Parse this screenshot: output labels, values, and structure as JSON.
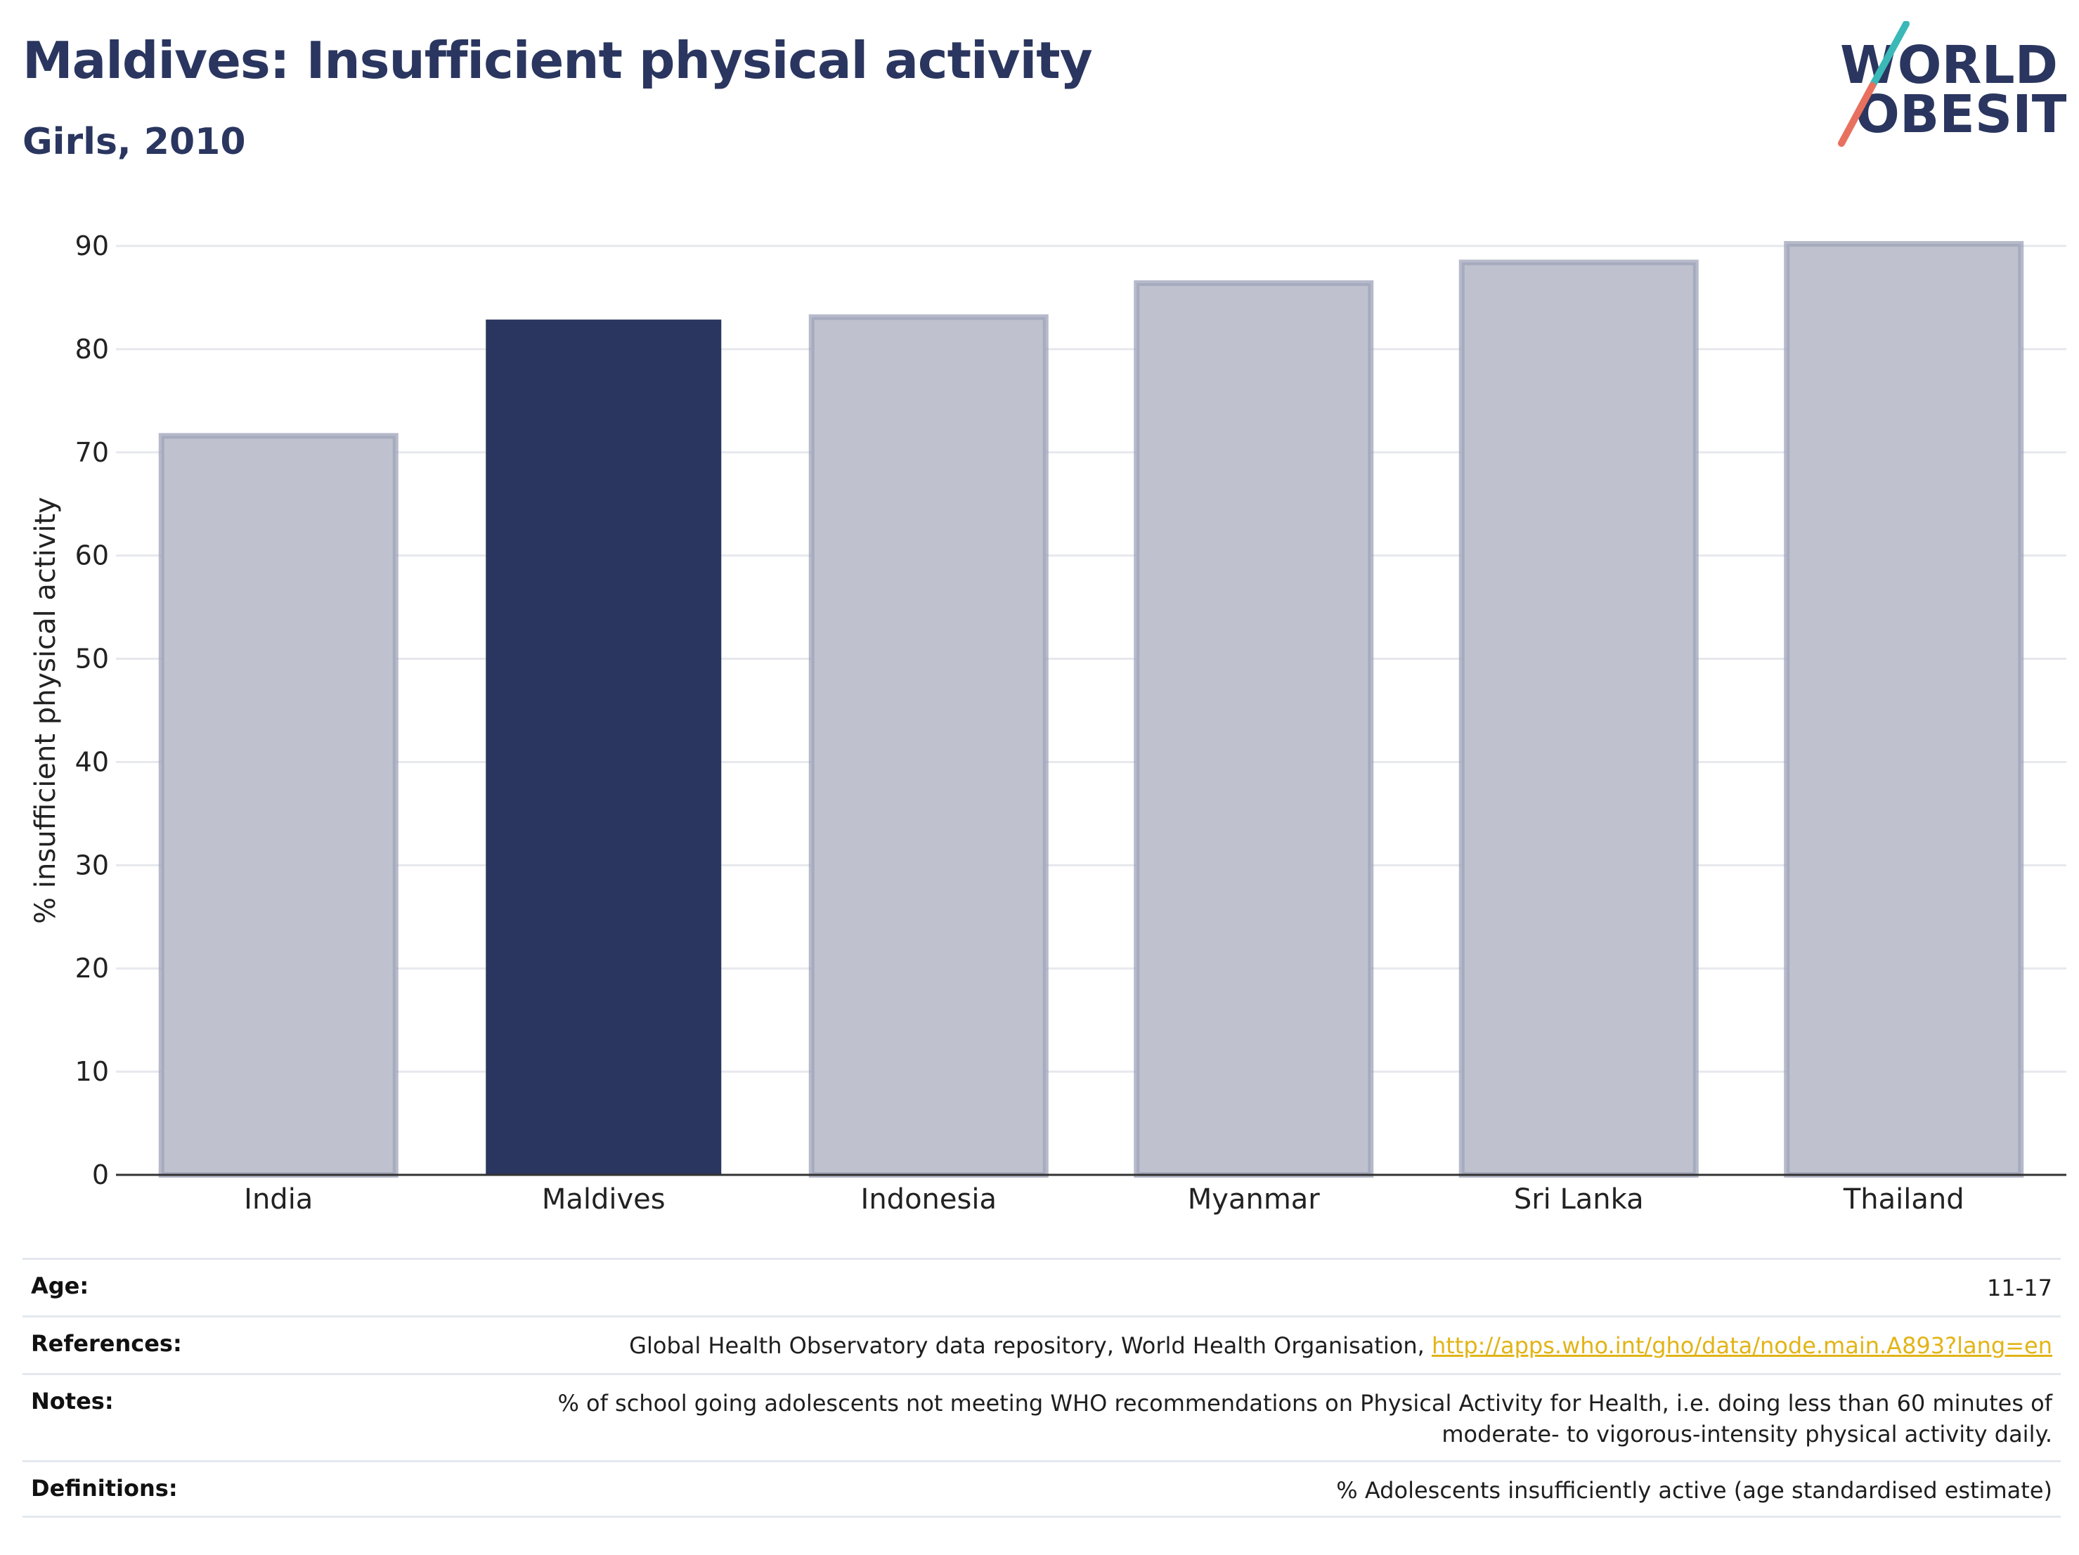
{
  "title": "Maldives: Insufficient physical activity",
  "subtitle": "Girls, 2010",
  "logo": {
    "line1": "WORLD",
    "line2": "OBESITY",
    "colors": {
      "text": "#2a365f",
      "slash_teal": "#3bb8b8",
      "slash_coral": "#e8705e"
    }
  },
  "chart_data": {
    "type": "bar",
    "categories": [
      "India",
      "Maldives",
      "Indonesia",
      "Myanmar",
      "Sri Lanka",
      "Thailand"
    ],
    "values": [
      71.6,
      82.8,
      83.1,
      86.4,
      88.4,
      90.2
    ],
    "highlight": "Maldives",
    "ylabel": "% insufficient physical activity",
    "xlabel": "",
    "ylim": [
      0,
      90
    ],
    "yticks": [
      0,
      10,
      20,
      30,
      40,
      50,
      60,
      70,
      80,
      90
    ],
    "grid": true,
    "colors": {
      "highlight": "#2a365f",
      "other_fill": "#bfc2ce",
      "other_stroke": "#9ea3b8"
    }
  },
  "footer": {
    "age_label": "Age:",
    "age_value": "11-17",
    "references_label": "References:",
    "references_text": "Global Health Observatory data repository, World Health Organisation, ",
    "references_link": "http://apps.who.int/gho/data/node.main.A893?lang=en",
    "notes_label": "Notes:",
    "notes_line1": "% of school going adolescents not meeting WHO recommendations on Physical Activity for Health, i.e. doing less than 60 minutes of",
    "notes_line2": "moderate- to vigorous-intensity physical activity daily.",
    "definitions_label": "Definitions:",
    "definitions_value": "% Adolescents insufficiently active (age standardised estimate)"
  }
}
